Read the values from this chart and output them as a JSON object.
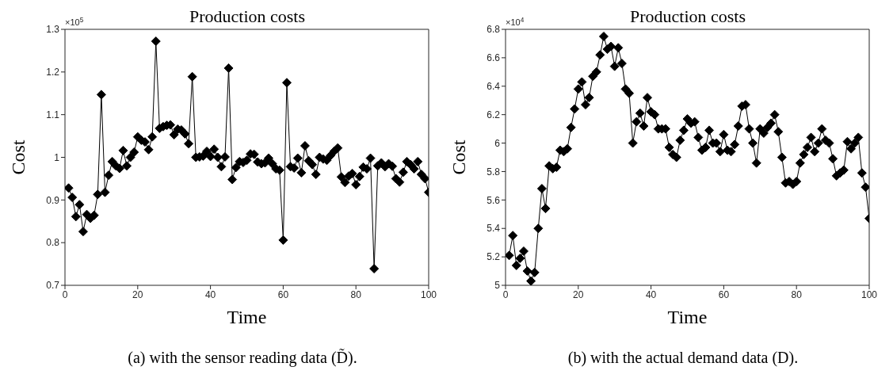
{
  "chart_data": [
    {
      "type": "line",
      "title": "Production costs",
      "xlabel": "Time",
      "ylabel": "Cost",
      "marker": "diamond",
      "line_style": "solid",
      "x": [
        1,
        2,
        3,
        4,
        5,
        6,
        7,
        8,
        9,
        10,
        11,
        12,
        13,
        14,
        15,
        16,
        17,
        18,
        19,
        20,
        21,
        22,
        23,
        24,
        25,
        26,
        27,
        28,
        29,
        30,
        31,
        32,
        33,
        34,
        35,
        36,
        37,
        38,
        39,
        40,
        41,
        42,
        43,
        44,
        45,
        46,
        47,
        48,
        49,
        50,
        51,
        52,
        53,
        54,
        55,
        56,
        57,
        58,
        59,
        60,
        61,
        62,
        63,
        64,
        65,
        66,
        67,
        68,
        69,
        70,
        71,
        72,
        73,
        74,
        75,
        76,
        77,
        78,
        79,
        80,
        81,
        82,
        83,
        84,
        85,
        86,
        87,
        88,
        89,
        90,
        91,
        92,
        93,
        94,
        95,
        96,
        97,
        98,
        99,
        100
      ],
      "series": [
        {
          "color": "#000000",
          "values": [
            0.928,
            0.906,
            0.861,
            0.889,
            0.826,
            0.866,
            0.857,
            0.864,
            0.913,
            1.147,
            0.918,
            0.958,
            0.99,
            0.98,
            0.974,
            1.016,
            0.98,
            1.0,
            1.012,
            1.048,
            1.04,
            1.036,
            1.018,
            1.048,
            1.272,
            1.068,
            1.072,
            1.075,
            1.076,
            1.053,
            1.066,
            1.064,
            1.055,
            1.032,
            1.189,
            1.0,
            1.001,
            1.003,
            1.014,
            1.002,
            1.019,
            1.0,
            0.978,
            1.001,
            1.209,
            0.948,
            0.976,
            0.99,
            0.988,
            0.993,
            1.008,
            1.007,
            0.989,
            0.985,
            0.987,
            0.998,
            0.985,
            0.973,
            0.97,
            0.806,
            1.175,
            0.978,
            0.975,
            0.998,
            0.964,
            1.027,
            0.992,
            0.983,
            0.96,
            1.0,
            0.996,
            0.993,
            1.004,
            1.014,
            1.022,
            0.954,
            0.941,
            0.956,
            0.962,
            0.936,
            0.955,
            0.977,
            0.973,
            0.998,
            0.739,
            0.98,
            0.987,
            0.978,
            0.985,
            0.979,
            0.95,
            0.942,
            0.965,
            0.99,
            0.983,
            0.973,
            0.99,
            0.96,
            0.95,
            0.918
          ]
        }
      ],
      "xlim": [
        0,
        100
      ],
      "xticks": [
        0,
        20,
        40,
        60,
        80,
        100
      ],
      "ylim": [
        0.7,
        1.3
      ],
      "yticks": [
        0.7,
        0.8,
        0.9,
        1,
        1.1,
        1.2,
        1.3
      ],
      "annotations": [
        "×10$^{5}$",
        "(a) with the sensor reading data (D̃)."
      ]
    },
    {
      "type": "line",
      "title": "Production costs",
      "xlabel": "Time",
      "ylabel": "Cost",
      "marker": "diamond",
      "line_style": "solid",
      "x": [
        1,
        2,
        3,
        4,
        5,
        6,
        7,
        8,
        9,
        10,
        11,
        12,
        13,
        14,
        15,
        16,
        17,
        18,
        19,
        20,
        21,
        22,
        23,
        24,
        25,
        26,
        27,
        28,
        29,
        30,
        31,
        32,
        33,
        34,
        35,
        36,
        37,
        38,
        39,
        40,
        41,
        42,
        43,
        44,
        45,
        46,
        47,
        48,
        49,
        50,
        51,
        52,
        53,
        54,
        55,
        56,
        57,
        58,
        59,
        60,
        61,
        62,
        63,
        64,
        65,
        66,
        67,
        68,
        69,
        70,
        71,
        72,
        73,
        74,
        75,
        76,
        77,
        78,
        79,
        80,
        81,
        82,
        83,
        84,
        85,
        86,
        87,
        88,
        89,
        90,
        91,
        92,
        93,
        94,
        95,
        96,
        97,
        98,
        99,
        100
      ],
      "series": [
        {
          "color": "#000000",
          "values": [
            5.21,
            5.35,
            5.14,
            5.19,
            5.24,
            5.1,
            5.03,
            5.09,
            5.4,
            5.68,
            5.54,
            5.84,
            5.82,
            5.83,
            5.95,
            5.94,
            5.96,
            6.11,
            6.24,
            6.38,
            6.43,
            6.27,
            6.32,
            6.47,
            6.5,
            6.62,
            6.75,
            6.66,
            6.68,
            6.54,
            6.67,
            6.56,
            6.38,
            6.35,
            6.0,
            6.15,
            6.21,
            6.12,
            6.32,
            6.22,
            6.2,
            6.1,
            6.1,
            6.1,
            5.97,
            5.92,
            5.9,
            6.02,
            6.09,
            6.17,
            6.14,
            6.15,
            6.04,
            5.95,
            5.97,
            6.09,
            6.0,
            6.0,
            5.94,
            6.06,
            5.95,
            5.94,
            5.99,
            6.12,
            6.26,
            6.27,
            6.1,
            6.0,
            5.86,
            6.1,
            6.07,
            6.11,
            6.14,
            6.2,
            6.08,
            5.9,
            5.72,
            5.73,
            5.71,
            5.73,
            5.86,
            5.92,
            5.97,
            6.04,
            5.94,
            6.0,
            6.1,
            6.02,
            6.0,
            5.89,
            5.77,
            5.79,
            5.81,
            6.01,
            5.96,
            6.0,
            6.04,
            5.79,
            5.69,
            5.47
          ]
        }
      ],
      "xlim": [
        0,
        100
      ],
      "xticks": [
        0,
        20,
        40,
        60,
        80,
        100
      ],
      "ylim": [
        5,
        6.8
      ],
      "yticks": [
        5,
        5.2,
        5.4,
        5.6,
        5.8,
        6,
        6.2,
        6.4,
        6.6,
        6.8
      ],
      "annotations": [
        "×10$^{4}$",
        "(b) with the actual demand data (D)."
      ]
    }
  ]
}
